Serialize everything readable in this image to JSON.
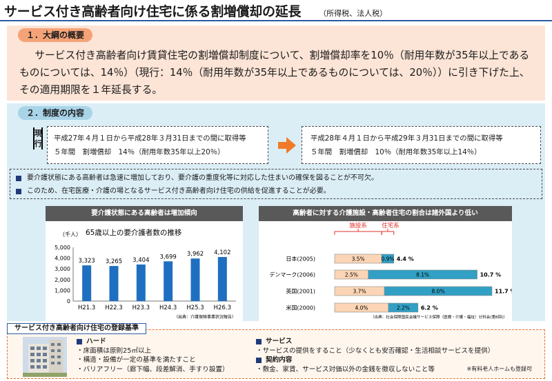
{
  "header": {
    "title": "サービス付き高齢者向け住宅に係る割増償却の延長",
    "subtitle": "（所得税、法人税）"
  },
  "section1": {
    "heading": "１．大綱の概要",
    "body": "サービス付き高齢者向け賃貸住宅の割増償却制度について、割増償却率を10％（耐用年数が35年以上であるものについては、14％）（現行：14％（耐用年数が35年以上であるものについては、20％））に引き下げた上、その適用期限を１年延長する。"
  },
  "section2": {
    "heading": "２．制度の内容",
    "current_label": "現行",
    "current_line1": "平成27年４月１日から平成28年３月31日までの間に取得等",
    "current_line2": "５年間　割増償却　14％（耐用年数35年以上20％）",
    "new_line1": "平成28年４月１日から平成29年３月31日までの間に取得等",
    "new_line2": "５年間　割増償却　10％（耐用年数35年以上14％）",
    "notes": [
      "要介護状態にある高齢者は急速に増加しており、要介護の重度化等に対応した住まいの確保を図ることが不可欠。",
      "このため、在宅医療・介護の場となるサービス付き高齢者向け住宅の供給を促進することが必要。"
    ]
  },
  "chart_left_banner": "要介護状態にある高齢者は増加傾向",
  "chart_right_banner": "高齢者に対する介護施設・高齢者住宅の割合は諸外国より低い",
  "chart_data": [
    {
      "type": "bar",
      "title": "65歳以上の要介護者数の推移",
      "ylabel": "（千人）",
      "categories": [
        "H21.3",
        "H22.3",
        "H23.3",
        "H24.3",
        "H25.3",
        "H26.3"
      ],
      "values": [
        3323,
        3265,
        3404,
        3699,
        3962,
        4102
      ],
      "value_labels": [
        "3,323",
        "3,265",
        "3,404",
        "3,699",
        "3,962",
        "4,102"
      ],
      "yticks": [
        "0",
        "1,000",
        "2,000",
        "3,000",
        "4,000",
        "5,000"
      ],
      "ylim": [
        0,
        5000
      ],
      "grid": false,
      "bar_color": "#1f6fc1",
      "source": "（出典：介護保険事業状況報告）"
    },
    {
      "type": "bar",
      "orientation": "horizontal",
      "stacked": true,
      "group_labels": [
        "施設系",
        "住宅系"
      ],
      "categories": [
        "日本(2005)",
        "デンマーク(2006)",
        "英国(2001)",
        "米国(2000)"
      ],
      "series": [
        {
          "name": "施設系",
          "values": [
            3.5,
            2.5,
            3.7,
            4.0
          ],
          "labels": [
            "3.5%",
            "2.5%",
            "3.7%",
            "4.0%"
          ],
          "color": "#fbd5b5"
        },
        {
          "name": "住宅系",
          "values": [
            0.9,
            8.1,
            8.0,
            2.2
          ],
          "labels": [
            "0.9%",
            "8.1%",
            "8.0%",
            "2.2%"
          ],
          "color": "#31a0c4"
        }
      ],
      "totals": [
        "4.4 %",
        "10.7 %",
        "11.7 %",
        "6.2 %"
      ],
      "xlim": [
        0,
        11.7
      ],
      "source": "（出典：社会保障国民会議サービス保障（医療・介護・福祉）分科会(第8回)）"
    }
  ],
  "criteria": {
    "banner": "サービス付き高齢者向け住宅の登録基準",
    "hard_title": "ハード",
    "hard_items": [
      "・床面積は原則25㎡以上",
      "・構造・設備が一定の基準を満たすこと",
      "・バリアフリー（廊下幅、段差解消、手すり設置）"
    ],
    "service_title": "サービス",
    "service_items": [
      "・サービスの提供をすること（少なくとも安否確認・生活相談サービスを提供）"
    ],
    "contract_title": "契約内容",
    "contract_items": [
      "・敷金、家賃、サービス対価以外の金銭を徴収しないこと等"
    ],
    "note": "※有料老人ホームも登録可"
  },
  "colors": {
    "section1_bg": "#fce4d6",
    "section2_bg": "#dbeef6",
    "accent_arrow": "#f07a2a",
    "bar_blue": "#1f6fc1"
  },
  "icons": {
    "arrow": "right-arrow-icon",
    "building": "building-photo"
  }
}
